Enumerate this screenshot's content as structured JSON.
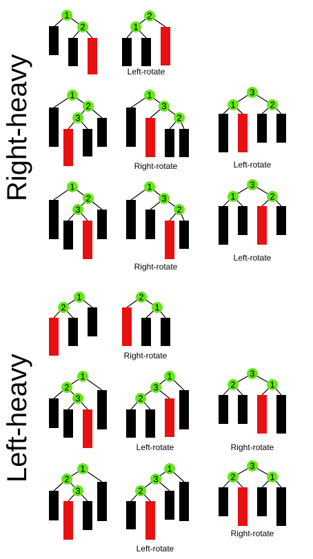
{
  "sections": {
    "right_heavy": "Right-heavy",
    "left_heavy": "Left-heavy"
  },
  "captions": [
    "Left-rotate",
    "Right-rotate",
    "Left-rotate",
    "Right-rotate",
    "Left-rotate",
    "Right-rotate",
    "Left-rotate",
    "Right-rotate",
    "Left-rotate",
    "Right-rotate"
  ],
  "colors": {
    "node": "#66e61a",
    "highlight_bar": "#e81010",
    "bar": "#000000",
    "edge": "#000000"
  }
}
